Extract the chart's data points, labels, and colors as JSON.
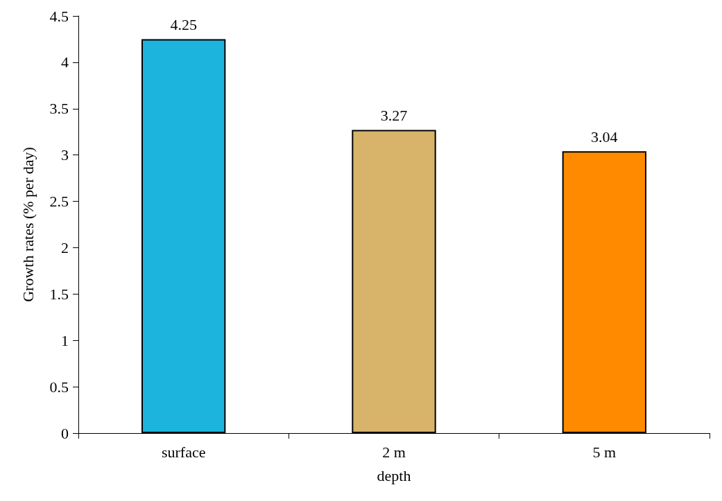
{
  "chart_data": {
    "type": "bar",
    "xlabel": "depth",
    "ylabel": "Growth rates (% per day)",
    "categories": [
      "surface",
      "2 m",
      "5 m"
    ],
    "values": [
      4.25,
      3.27,
      3.04
    ],
    "colors": [
      "#1cb4dc",
      "#d8b46a",
      "#ff8a00"
    ],
    "data_labels": true,
    "ylim": [
      0,
      4.5
    ],
    "yticks": [
      0,
      0.5,
      1,
      1.5,
      2,
      2.5,
      3,
      3.5,
      4,
      4.5
    ],
    "grid": false
  }
}
